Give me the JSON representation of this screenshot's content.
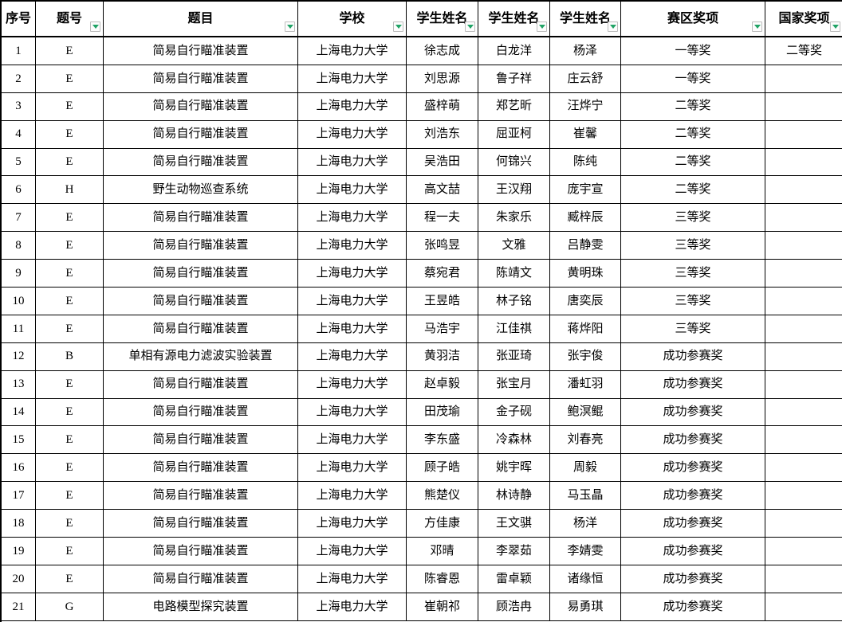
{
  "app": {
    "kind": "spreadsheet-table",
    "accent_color": "#21a366",
    "border_color": "#000000",
    "filter_button_border": "#bdbdbd",
    "filter_button_bg": "#fdfdfd",
    "filter_icon": "triangle-down"
  },
  "table": {
    "columns": [
      {
        "key": "seq",
        "label": "序号",
        "filter": false
      },
      {
        "key": "problem-id",
        "label": "题号",
        "filter": true
      },
      {
        "key": "title",
        "label": "题目",
        "filter": true
      },
      {
        "key": "school",
        "label": "学校",
        "filter": true
      },
      {
        "key": "student-1",
        "label": "学生姓名",
        "filter": true
      },
      {
        "key": "student-2",
        "label": "学生姓名",
        "filter": true
      },
      {
        "key": "student-3",
        "label": "学生姓名",
        "filter": true
      },
      {
        "key": "regional-award",
        "label": "赛区奖项",
        "filter": true
      },
      {
        "key": "national-award",
        "label": "国家奖项",
        "filter": true
      }
    ],
    "rows": [
      [
        "1",
        "E",
        "简易自行瞄准装置",
        "上海电力大学",
        "徐志成",
        "白龙洋",
        "杨泽",
        "一等奖",
        "二等奖"
      ],
      [
        "2",
        "E",
        "简易自行瞄准装置",
        "上海电力大学",
        "刘思源",
        "鲁子祥",
        "庄云舒",
        "一等奖",
        ""
      ],
      [
        "3",
        "E",
        "简易自行瞄准装置",
        "上海电力大学",
        "盛梓萌",
        "郑艺昕",
        "汪烨宁",
        "二等奖",
        ""
      ],
      [
        "4",
        "E",
        "简易自行瞄准装置",
        "上海电力大学",
        "刘浩东",
        "屈亚柯",
        "崔馨",
        "二等奖",
        ""
      ],
      [
        "5",
        "E",
        "简易自行瞄准装置",
        "上海电力大学",
        "吴浩田",
        "何锦兴",
        "陈纯",
        "二等奖",
        ""
      ],
      [
        "6",
        "H",
        "野生动物巡查系统",
        "上海电力大学",
        "高文喆",
        "王汉翔",
        "庞宇宣",
        "二等奖",
        ""
      ],
      [
        "7",
        "E",
        "简易自行瞄准装置",
        "上海电力大学",
        "程一夫",
        "朱家乐",
        "臧梓辰",
        "三等奖",
        ""
      ],
      [
        "8",
        "E",
        "简易自行瞄准装置",
        "上海电力大学",
        "张鸣昱",
        "文雅",
        "吕静雯",
        "三等奖",
        ""
      ],
      [
        "9",
        "E",
        "简易自行瞄准装置",
        "上海电力大学",
        "蔡宛君",
        "陈靖文",
        "黄明珠",
        "三等奖",
        ""
      ],
      [
        "10",
        "E",
        "简易自行瞄准装置",
        "上海电力大学",
        "王昱皓",
        "林子铭",
        "唐奕辰",
        "三等奖",
        ""
      ],
      [
        "11",
        "E",
        "简易自行瞄准装置",
        "上海电力大学",
        "马浩宇",
        "江佳祺",
        "蒋烨阳",
        "三等奖",
        ""
      ],
      [
        "12",
        "B",
        "单相有源电力滤波实验装置",
        "上海电力大学",
        "黄羽洁",
        "张亚琦",
        "张宇俊",
        "成功参赛奖",
        ""
      ],
      [
        "13",
        "E",
        "简易自行瞄准装置",
        "上海电力大学",
        "赵卓毅",
        "张宝月",
        "潘虹羽",
        "成功参赛奖",
        ""
      ],
      [
        "14",
        "E",
        "简易自行瞄准装置",
        "上海电力大学",
        "田茂瑜",
        "金子砚",
        "鲍溟鲲",
        "成功参赛奖",
        ""
      ],
      [
        "15",
        "E",
        "简易自行瞄准装置",
        "上海电力大学",
        "李东盛",
        "冷森林",
        "刘春亮",
        "成功参赛奖",
        ""
      ],
      [
        "16",
        "E",
        "简易自行瞄准装置",
        "上海电力大学",
        "顾子皓",
        "姚宇晖",
        "周毅",
        "成功参赛奖",
        ""
      ],
      [
        "17",
        "E",
        "简易自行瞄准装置",
        "上海电力大学",
        "熊楚仪",
        "林诗静",
        "马玉晶",
        "成功参赛奖",
        ""
      ],
      [
        "18",
        "E",
        "简易自行瞄准装置",
        "上海电力大学",
        "方佳康",
        "王文骐",
        "杨洋",
        "成功参赛奖",
        ""
      ],
      [
        "19",
        "E",
        "简易自行瞄准装置",
        "上海电力大学",
        "邓晴",
        "李翠茹",
        "李婧雯",
        "成功参赛奖",
        ""
      ],
      [
        "20",
        "E",
        "简易自行瞄准装置",
        "上海电力大学",
        "陈睿恩",
        "雷卓颖",
        "诸缘恒",
        "成功参赛奖",
        ""
      ],
      [
        "21",
        "G",
        "电路模型探究装置",
        "上海电力大学",
        "崔朝祁",
        "顾浩冉",
        "易勇琪",
        "成功参赛奖",
        ""
      ]
    ]
  }
}
